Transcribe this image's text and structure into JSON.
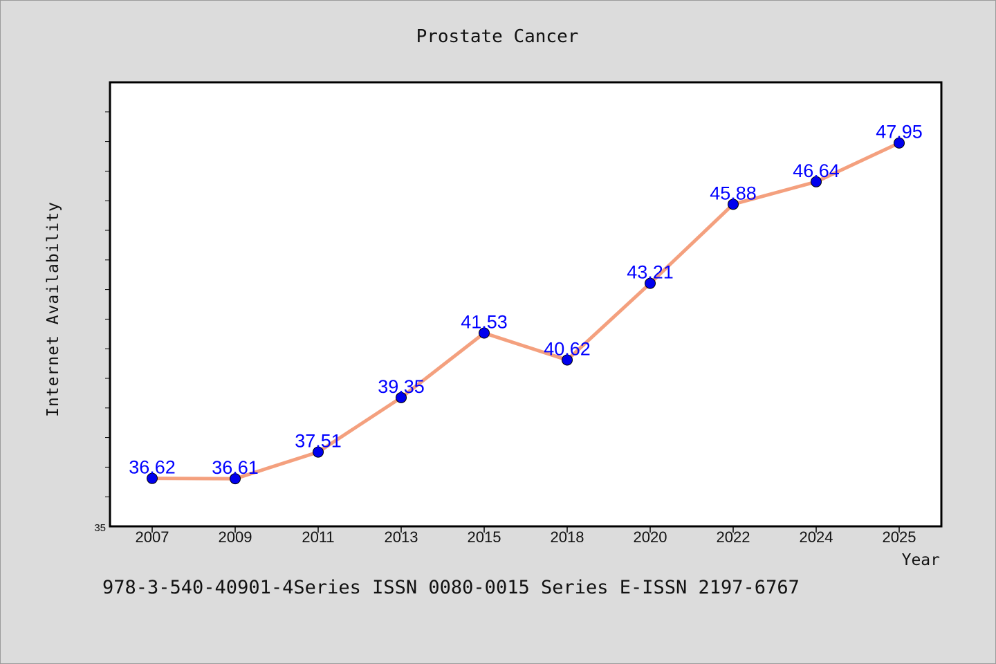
{
  "colors": {
    "background": "#dcdcdc",
    "plot_background": "#ffffff",
    "line": "#f4a07e",
    "marker": "#0000ee",
    "data_label": "#0000ff"
  },
  "footer": {
    "text": "978-3-540-40901-4Series ISSN 0080-0015 Series E-ISSN 2197-6767"
  },
  "chart_data": {
    "type": "line",
    "title": "Prostate Cancer",
    "xlabel": "Year",
    "ylabel": "Internet Availability",
    "categories": [
      "2007",
      "2009",
      "2011",
      "2013",
      "2015",
      "2018",
      "2020",
      "2022",
      "2024",
      "2025"
    ],
    "series": [
      {
        "values": [
          36.62,
          36.61,
          37.51,
          39.35,
          41.53,
          40.62,
          43.21,
          45.88,
          46.64,
          47.95
        ],
        "labels": [
          "36.62",
          "36.61",
          "37.51",
          "39.35",
          "41.53",
          "40.62",
          "43.21",
          "45.88",
          "46.64",
          "47.95"
        ]
      }
    ],
    "ylim": [
      35,
      50
    ],
    "yticks": [
      35
    ],
    "grid": false,
    "legend": "none"
  }
}
